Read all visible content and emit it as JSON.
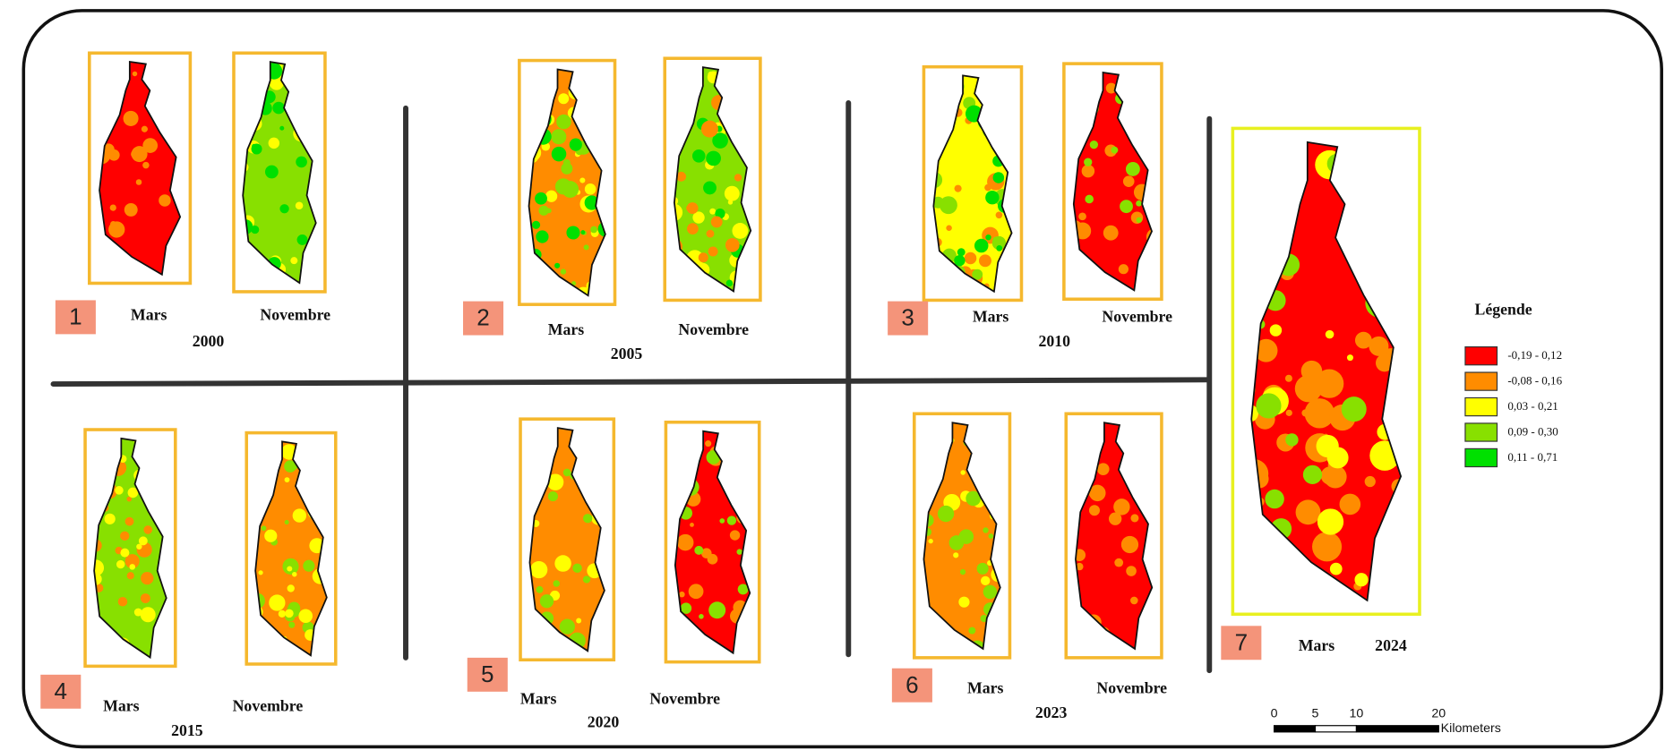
{
  "panels": [
    {
      "number": "1",
      "left": "Mars",
      "right": "Novembre",
      "year": "2000"
    },
    {
      "number": "2",
      "left": "Mars",
      "right": "Novembre",
      "year": "2005"
    },
    {
      "number": "3",
      "left": "Mars",
      "right": "Novembre",
      "year": "2010"
    },
    {
      "number": "4",
      "left": "Mars",
      "right": "Novembre",
      "year": "2015"
    },
    {
      "number": "5",
      "left": "Mars",
      "right": "Novembre",
      "year": "2020"
    },
    {
      "number": "6",
      "left": "Mars",
      "right": "Novembre",
      "year": "2023"
    }
  ],
  "featured": {
    "number": "7",
    "month": "Mars",
    "year": "2024"
  },
  "legend": {
    "title": "Légende",
    "items": [
      {
        "label": "-0,19 - 0,12",
        "color": "#ff0000"
      },
      {
        "label": "-0,08 - 0,16",
        "color": "#ff8c00"
      },
      {
        "label": "0,03 - 0,21",
        "color": "#ffff00"
      },
      {
        "label": "0,09 - 0,30",
        "color": "#88e000"
      },
      {
        "label": "0,11 - 0,71",
        "color": "#00e000"
      }
    ]
  },
  "scale_bar": {
    "ticks": [
      0,
      5,
      10,
      20
    ],
    "unit": "Kilometers"
  }
}
